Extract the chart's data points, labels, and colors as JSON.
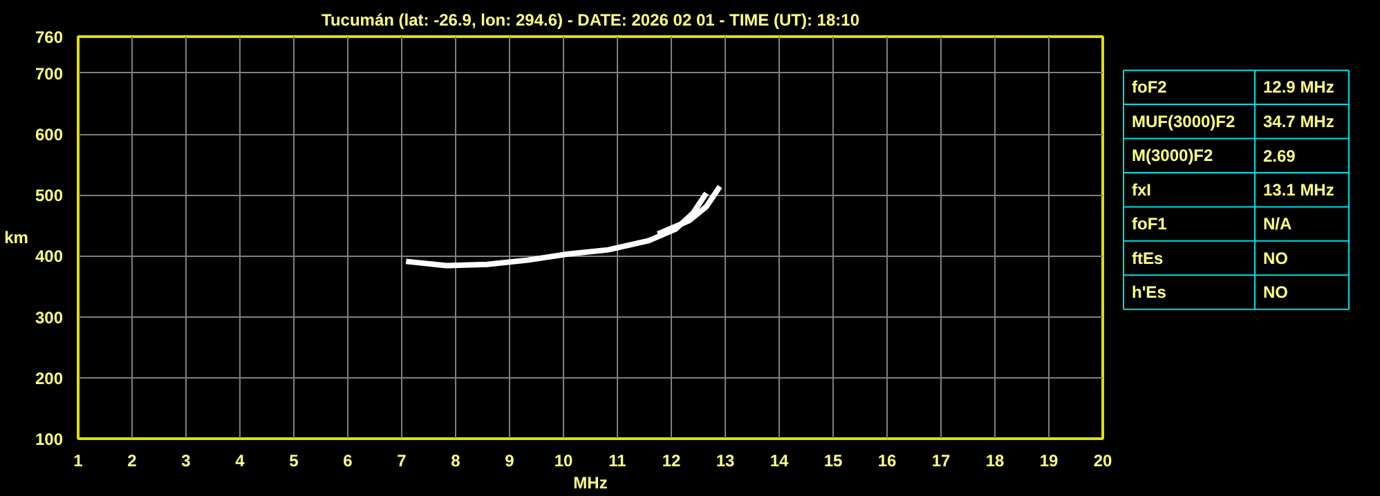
{
  "chart_data": [
    {
      "type": "line",
      "title": "Tucumán (lat: -26.9, lon: 294.6) - DATE: 2026 02 01 - TIME (UT): 18:10",
      "xlabel": "MHz",
      "ylabel": "km",
      "xlim": [
        1,
        20
      ],
      "ylim": [
        100,
        760
      ],
      "xticks": [
        1,
        2,
        3,
        4,
        5,
        6,
        7,
        8,
        9,
        10,
        11,
        12,
        13,
        14,
        15,
        16,
        17,
        18,
        19,
        20
      ],
      "yticks": [
        100,
        200,
        300,
        400,
        500,
        600,
        700,
        760
      ],
      "grid": true,
      "marker": "none",
      "line_style": "solid",
      "series": [
        {
          "color": "#ffffff",
          "x": [
            7.08,
            7.83,
            8.58,
            9.33,
            10.08,
            10.83,
            11.58,
            12.08,
            12.4,
            12.65
          ],
          "values": [
            391,
            384,
            386,
            393,
            403,
            410,
            425,
            444,
            470,
            503
          ]
        },
        {
          "color": "#ffffff",
          "x": [
            11.75,
            12.33,
            12.65,
            12.9
          ],
          "values": [
            436,
            458,
            481,
            514
          ]
        }
      ]
    },
    {
      "type": "other",
      "annotations": [
        "foF2",
        "12.9 MHz",
        "MUF(3000)F2",
        "34.7 MHz",
        "M(3000)F2",
        "2.69",
        "fxI",
        "13.1 MHz",
        "foF1",
        "N/A",
        "ftEs",
        "NO",
        "h'Es",
        "NO"
      ]
    }
  ]
}
